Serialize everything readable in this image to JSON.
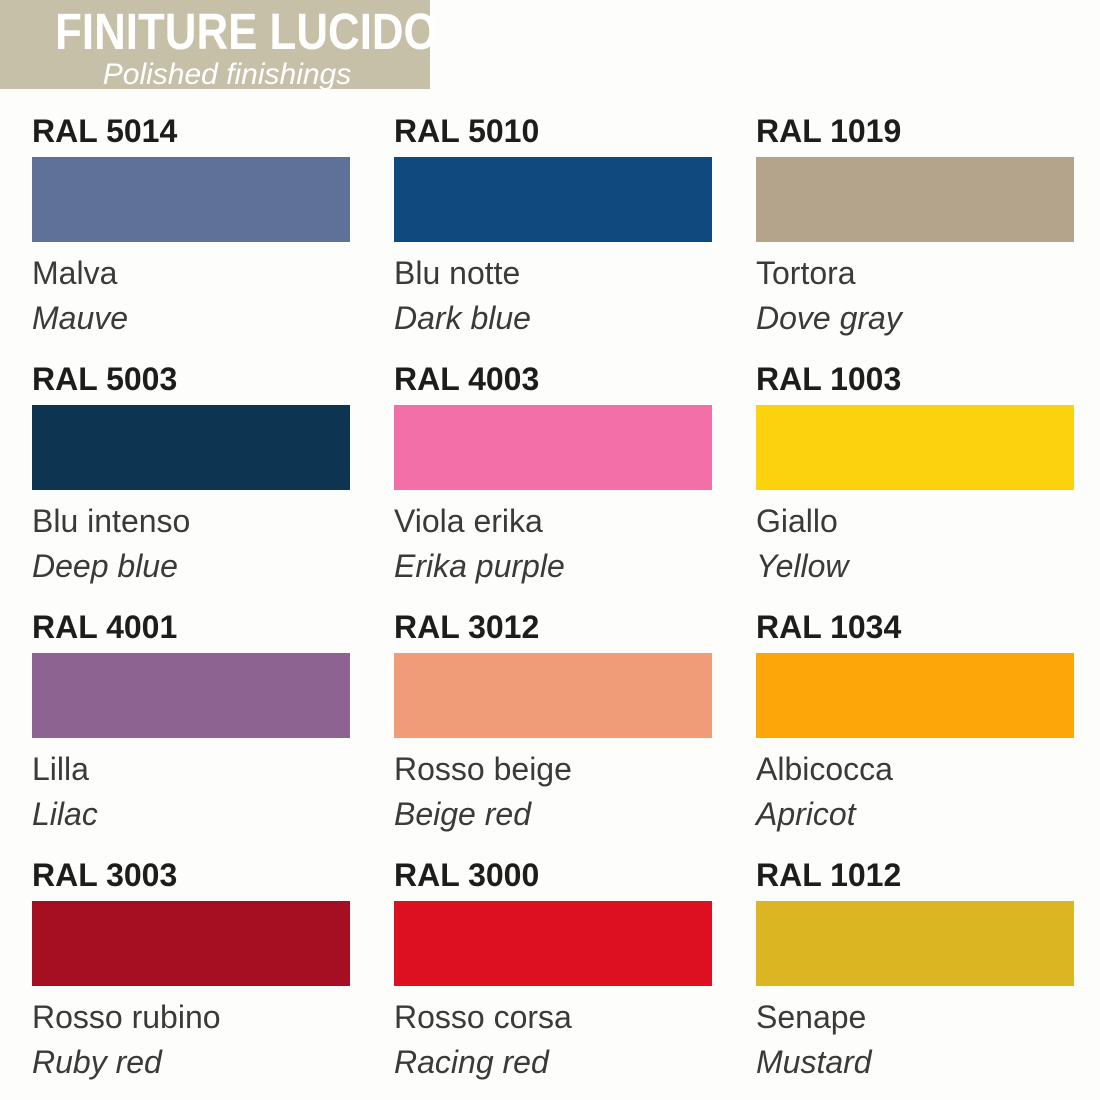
{
  "header": {
    "title": "FINITURE LUCIDO",
    "subtitle": "Polished finishings",
    "background": "#C6C0A9",
    "text_color": "#FFFFFF"
  },
  "swatches": [
    {
      "code": "RAL 5014",
      "name_it": "Malva",
      "name_en": "Mauve",
      "color": "#5F7199"
    },
    {
      "code": "RAL 5010",
      "name_it": "Blu notte",
      "name_en": "Dark blue",
      "color": "#10497E"
    },
    {
      "code": "RAL 1019",
      "name_it": "Tortora",
      "name_en": "Dove gray",
      "color": "#B5A48C"
    },
    {
      "code": "RAL 5003",
      "name_it": "Blu intenso",
      "name_en": "Deep blue",
      "color": "#0D3450"
    },
    {
      "code": "RAL 4003",
      "name_it": "Viola erika",
      "name_en": "Erika purple",
      "color": "#F36FA8"
    },
    {
      "code": "RAL 1003",
      "name_it": "Giallo",
      "name_en": "Yellow",
      "color": "#FCD10E"
    },
    {
      "code": "RAL 4001",
      "name_it": "Lilla",
      "name_en": "Lilac",
      "color": "#8D6392"
    },
    {
      "code": "RAL 3012",
      "name_it": "Rosso beige",
      "name_en": "Beige red",
      "color": "#F19C78"
    },
    {
      "code": "RAL 1034",
      "name_it": "Albicocca",
      "name_en": "Apricot",
      "color": "#FCA60A"
    },
    {
      "code": "RAL 3003",
      "name_it": "Rosso rubino",
      "name_en": "Ruby red",
      "color": "#A60E21"
    },
    {
      "code": "RAL 3000",
      "name_it": "Rosso corsa",
      "name_en": "Racing red",
      "color": "#DD1021"
    },
    {
      "code": "RAL 1012",
      "name_it": "Senape",
      "name_en": "Mustard",
      "color": "#DCB622"
    }
  ]
}
